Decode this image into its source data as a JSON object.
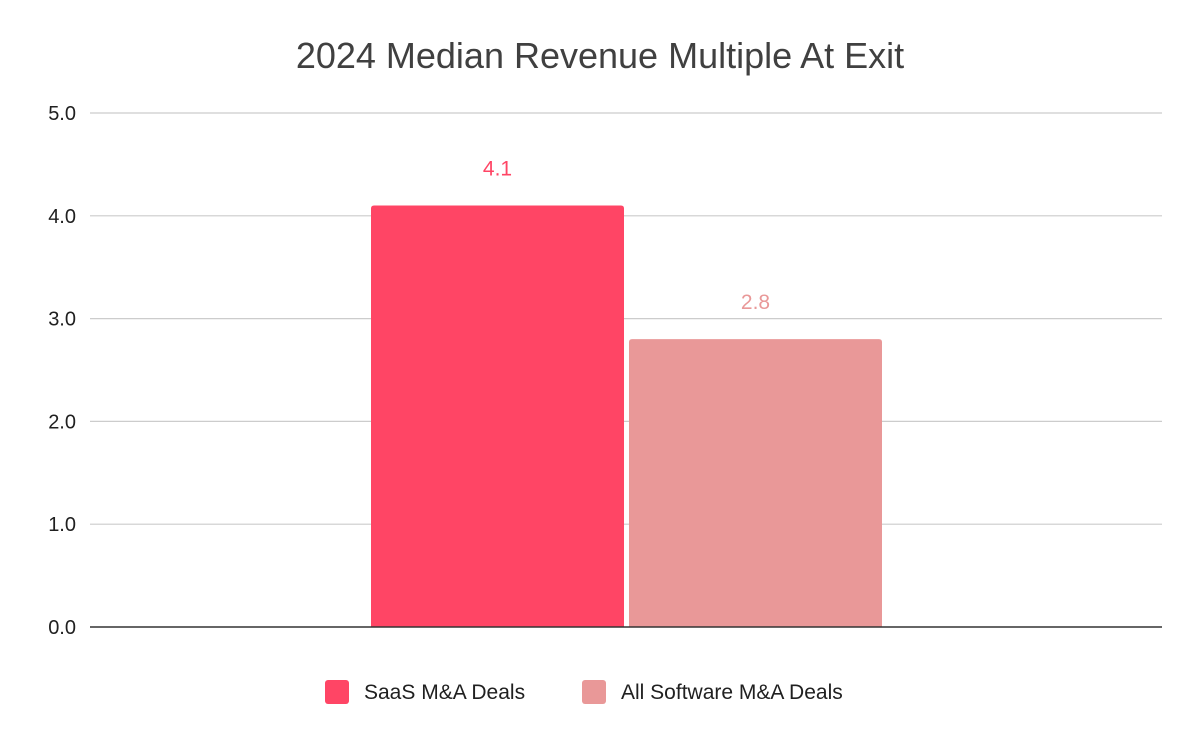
{
  "chart_data": {
    "type": "bar",
    "title": "2024 Median Revenue Multiple At Exit",
    "xlabel": "",
    "ylabel": "",
    "ylim": [
      0,
      5
    ],
    "yticks": [
      "0.0",
      "1.0",
      "2.0",
      "3.0",
      "4.0",
      "5.0"
    ],
    "grid": true,
    "legend_position": "bottom",
    "series": [
      {
        "name": "SaaS M&A Deals",
        "value": 4.1,
        "label": "4.1",
        "color": "#ff4565"
      },
      {
        "name": "All Software M&A Deals",
        "value": 2.8,
        "label": "2.8",
        "color": "#e99898"
      }
    ]
  }
}
